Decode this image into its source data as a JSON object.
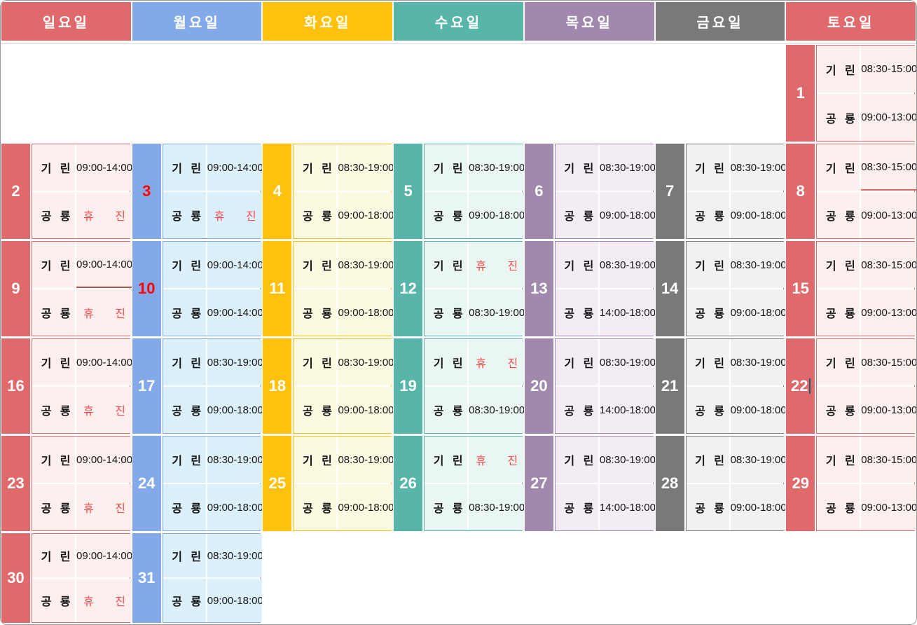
{
  "calendar": {
    "weekday_headers": [
      {
        "name": "sunday",
        "label": "일요일",
        "color": "#e0696b",
        "bg": "#fdefee"
      },
      {
        "name": "monday",
        "label": "월요일",
        "color": "#84a9e8",
        "bg": "#dcf0fb"
      },
      {
        "name": "tuesday",
        "label": "화요일",
        "color": "#fec10d",
        "bg": "#fcf9e1"
      },
      {
        "name": "wednesday",
        "label": "수요일",
        "color": "#57b6a9",
        "bg": "#e9f6f2"
      },
      {
        "name": "thursday",
        "label": "목요일",
        "color": "#a189ae",
        "bg": "#f4ecf5"
      },
      {
        "name": "friday",
        "label": "금요일",
        "color": "#7b7878",
        "bg": "#f2f1f1"
      },
      {
        "name": "saturday",
        "label": "토요일",
        "color": "#e0696b",
        "bg": "#fdefee"
      }
    ],
    "doctors": [
      "기 린",
      "공 룡"
    ],
    "closed_text": "휴 진",
    "holiday_number_color": "#ff0000",
    "closed_text_color": "#fa4a4a",
    "weeks": [
      [
        null,
        null,
        null,
        null,
        null,
        null,
        {
          "day": "1",
          "red": false,
          "rows": [
            {
              "label": "기 린",
              "time": "08:30-15:00",
              "closed": false
            },
            {
              "label": "공 룡",
              "time": "09:00-13:00",
              "closed": false
            }
          ]
        }
      ],
      [
        {
          "day": "2",
          "red": false,
          "rows": [
            {
              "label": "기 린",
              "time": "09:00-14:00",
              "closed": false
            },
            {
              "label": "공 룡",
              "time": "휴 진",
              "closed": true
            }
          ]
        },
        {
          "day": "3",
          "red": true,
          "rows": [
            {
              "label": "기 린",
              "time": "09:00-14:00",
              "closed": false
            },
            {
              "label": "공 룡",
              "time": "휴 진",
              "closed": true
            }
          ]
        },
        {
          "day": "4",
          "red": false,
          "rows": [
            {
              "label": "기 린",
              "time": "08:30-19:00",
              "closed": false
            },
            {
              "label": "공 룡",
              "time": "09:00-18:00",
              "closed": false
            }
          ]
        },
        {
          "day": "5",
          "red": false,
          "rows": [
            {
              "label": "기 린",
              "time": "08:30-19:00",
              "closed": false
            },
            {
              "label": "공 룡",
              "time": "09:00-18:00",
              "closed": false
            }
          ]
        },
        {
          "day": "6",
          "red": false,
          "rows": [
            {
              "label": "기 린",
              "time": "08:30-19:00",
              "closed": false
            },
            {
              "label": "공 룡",
              "time": "09:00-18:00",
              "closed": false
            }
          ]
        },
        {
          "day": "7",
          "red": false,
          "rows": [
            {
              "label": "기 린",
              "time": "08:30-19:00",
              "closed": false
            },
            {
              "label": "공 룡",
              "time": "09:00-18:00",
              "closed": false
            }
          ]
        },
        {
          "day": "8",
          "red": false,
          "divider": "#e0696b",
          "rows": [
            {
              "label": "기 린",
              "time": "08:30-15:00",
              "closed": false
            },
            {
              "label": "공 룡",
              "time": "09:00-13:00",
              "closed": false
            }
          ]
        }
      ],
      [
        {
          "day": "9",
          "red": false,
          "divider": "#b5534f",
          "rows": [
            {
              "label": "기 린",
              "time": "09:00-14:00",
              "closed": false
            },
            {
              "label": "공 룡",
              "time": "휴 진",
              "closed": true
            }
          ]
        },
        {
          "day": "10",
          "red": true,
          "rows": [
            {
              "label": "기 린",
              "time": "09:00-14:00",
              "closed": false
            },
            {
              "label": "공 룡",
              "time": "09:00-14:00",
              "closed": false
            }
          ]
        },
        {
          "day": "11",
          "red": false,
          "rows": [
            {
              "label": "기 린",
              "time": "08:30-19:00",
              "closed": false
            },
            {
              "label": "공 룡",
              "time": "09:00-18:00",
              "closed": false
            }
          ]
        },
        {
          "day": "12",
          "red": false,
          "rows": [
            {
              "label": "기 린",
              "time": "휴 진",
              "closed": true
            },
            {
              "label": "공 룡",
              "time": "08:30-19:00",
              "closed": false
            }
          ]
        },
        {
          "day": "13",
          "red": false,
          "rows": [
            {
              "label": "기 린",
              "time": "08:30-19:00",
              "closed": false
            },
            {
              "label": "공 룡",
              "time": "14:00-18:00",
              "closed": false
            }
          ]
        },
        {
          "day": "14",
          "red": false,
          "rows": [
            {
              "label": "기 린",
              "time": "08:30-19:00",
              "closed": false
            },
            {
              "label": "공 룡",
              "time": "09:00-18:00",
              "closed": false
            }
          ]
        },
        {
          "day": "15",
          "red": false,
          "rows": [
            {
              "label": "기 린",
              "time": "08:30-15:00",
              "closed": false
            },
            {
              "label": "공 룡",
              "time": "09:00-13:00",
              "closed": false
            }
          ]
        }
      ],
      [
        {
          "day": "16",
          "red": false,
          "rows": [
            {
              "label": "기 린",
              "time": "09:00-14:00",
              "closed": false
            },
            {
              "label": "공 룡",
              "time": "휴 진",
              "closed": true
            }
          ]
        },
        {
          "day": "17",
          "red": false,
          "rows": [
            {
              "label": "기 린",
              "time": "08:30-19:00",
              "closed": false
            },
            {
              "label": "공 룡",
              "time": "09:00-18:00",
              "closed": false
            }
          ]
        },
        {
          "day": "18",
          "red": false,
          "rows": [
            {
              "label": "기 린",
              "time": "08:30-19:00",
              "closed": false
            },
            {
              "label": "공 룡",
              "time": "09:00-18:00",
              "closed": false
            }
          ]
        },
        {
          "day": "19",
          "red": false,
          "rows": [
            {
              "label": "기 린",
              "time": "휴 진",
              "closed": true
            },
            {
              "label": "공 룡",
              "time": "08:30-19:00",
              "closed": false
            }
          ]
        },
        {
          "day": "20",
          "red": false,
          "rows": [
            {
              "label": "기 린",
              "time": "08:30-19:00",
              "closed": false
            },
            {
              "label": "공 룡",
              "time": "14:00-18:00",
              "closed": false
            }
          ]
        },
        {
          "day": "21",
          "red": false,
          "rows": [
            {
              "label": "기 린",
              "time": "08:30-19:00",
              "closed": false
            },
            {
              "label": "공 룡",
              "time": "09:00-18:00",
              "closed": false
            }
          ]
        },
        {
          "day": "22",
          "red": false,
          "cursor": true,
          "rows": [
            {
              "label": "기 린",
              "time": "08:30-15:00",
              "closed": false
            },
            {
              "label": "공 룡",
              "time": "09:00-13:00",
              "closed": false
            }
          ]
        }
      ],
      [
        {
          "day": "23",
          "red": false,
          "rows": [
            {
              "label": "기 린",
              "time": "09:00-14:00",
              "closed": false
            },
            {
              "label": "공 룡",
              "time": "휴 진",
              "closed": true
            }
          ]
        },
        {
          "day": "24",
          "red": false,
          "rows": [
            {
              "label": "기 린",
              "time": "08:30-19:00",
              "closed": false
            },
            {
              "label": "공 룡",
              "time": "09:00-18:00",
              "closed": false
            }
          ]
        },
        {
          "day": "25",
          "red": false,
          "rows": [
            {
              "label": "기 린",
              "time": "08:30-19:00",
              "closed": false
            },
            {
              "label": "공 룡",
              "time": "09:00-18:00",
              "closed": false
            }
          ]
        },
        {
          "day": "26",
          "red": false,
          "rows": [
            {
              "label": "기 린",
              "time": "휴 진",
              "closed": true
            },
            {
              "label": "공 룡",
              "time": "08:30-19:00",
              "closed": false
            }
          ]
        },
        {
          "day": "27",
          "red": false,
          "rows": [
            {
              "label": "기 린",
              "time": "08:30-19:00",
              "closed": false
            },
            {
              "label": "공 룡",
              "time": "14:00-18:00",
              "closed": false
            }
          ]
        },
        {
          "day": "28",
          "red": false,
          "rows": [
            {
              "label": "기 린",
              "time": "08:30-19:00",
              "closed": false
            },
            {
              "label": "공 룡",
              "time": "09:00-18:00",
              "closed": false
            }
          ]
        },
        {
          "day": "29",
          "red": false,
          "rows": [
            {
              "label": "기 린",
              "time": "08:30-15:00",
              "closed": false
            },
            {
              "label": "공 룡",
              "time": "09:00-13:00",
              "closed": false
            }
          ]
        }
      ],
      [
        {
          "day": "30",
          "red": false,
          "rows": [
            {
              "label": "기 린",
              "time": "09:00-14:00",
              "closed": false
            },
            {
              "label": "공 룡",
              "time": "휴 진",
              "closed": true
            }
          ]
        },
        {
          "day": "31",
          "red": false,
          "rows": [
            {
              "label": "기 린",
              "time": "08:30-19:00",
              "closed": false
            },
            {
              "label": "공 룡",
              "time": "09:00-18:00",
              "closed": false
            }
          ]
        },
        null,
        null,
        null,
        null,
        null
      ]
    ]
  }
}
